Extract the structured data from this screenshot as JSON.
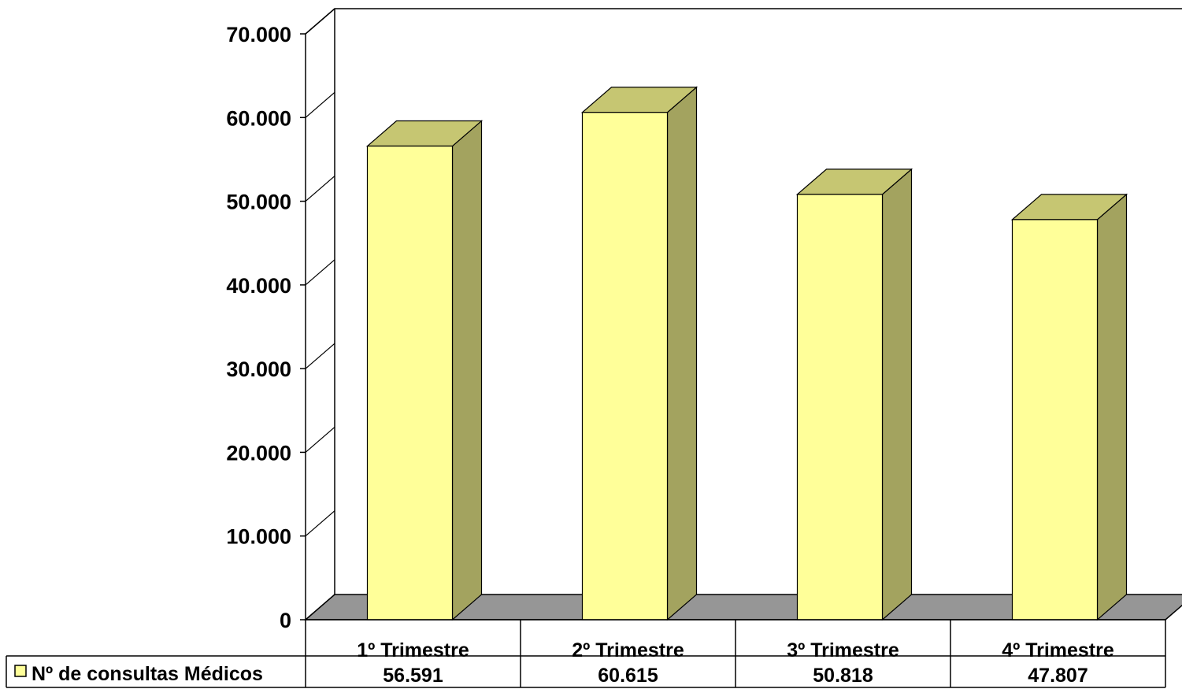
{
  "chart_data": {
    "type": "bar",
    "categories": [
      "1º Trimestre",
      "2º Trimestre",
      "3º Trimestre",
      "4º Trimestre"
    ],
    "series": [
      {
        "name": "Nº de consultas Médicos",
        "values": [
          56591,
          60615,
          50818,
          47807
        ]
      }
    ],
    "value_labels": [
      "56.591",
      "60.615",
      "50.818",
      "47.807"
    ],
    "y_ticks": [
      "0",
      "10.000",
      "20.000",
      "30.000",
      "40.000",
      "50.000",
      "60.000",
      "70.000"
    ],
    "ylim": [
      0,
      70000
    ],
    "grid": false,
    "legend": "data-table-left",
    "data_table": true,
    "colors": {
      "bar_front": "#ffff99",
      "bar_top": "#c6c672",
      "bar_side": "#a3a35f",
      "floor": "#969696",
      "axis": "#000000"
    }
  }
}
